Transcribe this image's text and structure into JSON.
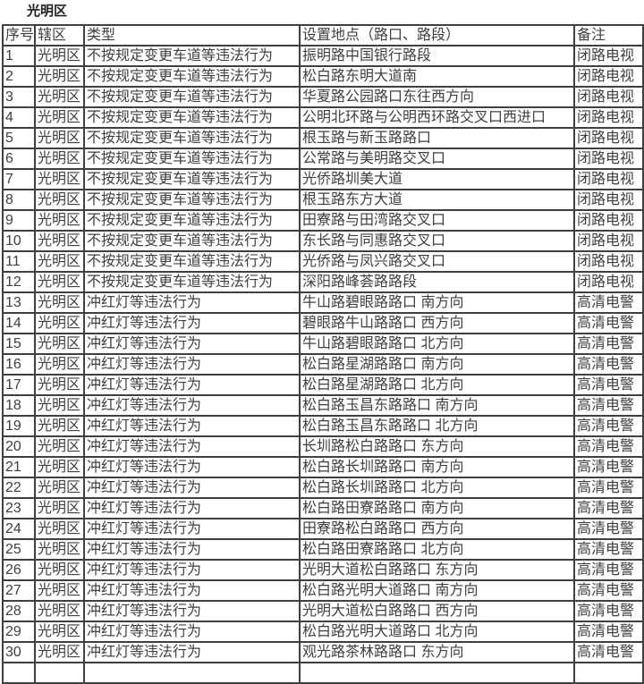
{
  "page": {
    "title": "光明区"
  },
  "colors": {
    "background": "#ffffff",
    "text": "#3f3f3f",
    "border": "#404040",
    "title_text": "#222222"
  },
  "table": {
    "columns": [
      {
        "key": "no",
        "label": "序号"
      },
      {
        "key": "district",
        "label": "辖区"
      },
      {
        "key": "type",
        "label": "类型"
      },
      {
        "key": "location",
        "label": "设置地点（路口、路段）"
      },
      {
        "key": "remark",
        "label": "备注"
      }
    ],
    "rows": [
      [
        "1",
        "光明区",
        "不按规定变更车道等违法行为",
        "振明路中国银行路段",
        "闭路电视"
      ],
      [
        "2",
        "光明区",
        "不按规定变更车道等违法行为",
        "松白路东明大道南",
        "闭路电视"
      ],
      [
        "3",
        "光明区",
        "不按规定变更车道等违法行为",
        "华夏路公园路口东往西方向",
        "闭路电视"
      ],
      [
        "4",
        "光明区",
        "不按规定变更车道等违法行为",
        "公明北环路与公明西环路交叉口西进口",
        "闭路电视"
      ],
      [
        "5",
        "光明区",
        "不按规定变更车道等违法行为",
        "根玉路与新玉路路口",
        "闭路电视"
      ],
      [
        "6",
        "光明区",
        "不按规定变更车道等违法行为",
        "公常路与美明路交叉口",
        "闭路电视"
      ],
      [
        "7",
        "光明区",
        "不按规定变更车道等违法行为",
        "光侨路圳美大道",
        "闭路电视"
      ],
      [
        "8",
        "光明区",
        "不按规定变更车道等违法行为",
        "根玉路东方大道",
        "闭路电视"
      ],
      [
        "9",
        "光明区",
        "不按规定变更车道等违法行为",
        "田寮路与田湾路交叉口",
        "闭路电视"
      ],
      [
        "10",
        "光明区",
        "不按规定变更车道等违法行为",
        "东长路与同惠路交叉口",
        "闭路电视"
      ],
      [
        "11",
        "光明区",
        "不按规定变更车道等违法行为",
        "光侨路与凤兴路交叉口",
        "闭路电视"
      ],
      [
        "12",
        "光明区",
        "不按规定变更车道等违法行为",
        "深阳路峰荟路路段",
        "闭路电视"
      ],
      [
        "13",
        "光明区",
        "冲红灯等违法行为",
        "牛山路碧眼路路口 南方向",
        "高清电警"
      ],
      [
        "14",
        "光明区",
        "冲红灯等违法行为",
        "碧眼路牛山路路口 西方向",
        "高清电警"
      ],
      [
        "15",
        "光明区",
        "冲红灯等违法行为",
        "牛山路碧眼路路口 北方向",
        "高清电警"
      ],
      [
        "16",
        "光明区",
        "冲红灯等违法行为",
        "松白路星湖路路口 南方向",
        "高清电警"
      ],
      [
        "17",
        "光明区",
        "冲红灯等违法行为",
        "松白路星湖路路口 北方向",
        "高清电警"
      ],
      [
        "18",
        "光明区",
        "冲红灯等违法行为",
        "松白路玉昌东路路口 南方向",
        "高清电警"
      ],
      [
        "19",
        "光明区",
        "冲红灯等违法行为",
        "松白路玉昌东路路口 北方向",
        "高清电警"
      ],
      [
        "20",
        "光明区",
        "冲红灯等违法行为",
        "长圳路松白路路口 东方向",
        "高清电警"
      ],
      [
        "21",
        "光明区",
        "冲红灯等违法行为",
        "松白路长圳路路口 南方向",
        "高清电警"
      ],
      [
        "22",
        "光明区",
        "冲红灯等违法行为",
        "松白路长圳路路口 北方向",
        "高清电警"
      ],
      [
        "23",
        "光明区",
        "冲红灯等违法行为",
        "松白路田寮路路口 南方向",
        "高清电警"
      ],
      [
        "24",
        "光明区",
        "冲红灯等违法行为",
        "田寮路松白路路口 西方向",
        "高清电警"
      ],
      [
        "25",
        "光明区",
        "冲红灯等违法行为",
        "松白路田寮路路口 北方向",
        "高清电警"
      ],
      [
        "26",
        "光明区",
        "冲红灯等违法行为",
        "光明大道松白路路口 东方向",
        "高清电警"
      ],
      [
        "27",
        "光明区",
        "冲红灯等违法行为",
        "松白路光明大道路口 南方向",
        "高清电警"
      ],
      [
        "28",
        "光明区",
        "冲红灯等违法行为",
        "光明大道松白路路口 西方向",
        "高清电警"
      ],
      [
        "29",
        "光明区",
        "冲红灯等违法行为",
        "松白路光明大道路口 北方向",
        "高清电警"
      ],
      [
        "30",
        "光明区",
        "冲红灯等违法行为",
        "观光路茶林路路口 东方向",
        "高清电警"
      ],
      [
        "",
        "",
        "",
        "",
        ""
      ]
    ]
  }
}
